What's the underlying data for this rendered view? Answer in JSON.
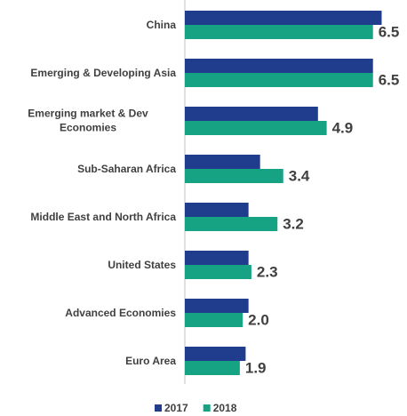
{
  "chart_data": {
    "type": "barh",
    "categories": [
      "China",
      "Emerging & Developing Asia",
      "Emerging market & Dev Economies",
      "Sub-Saharan Africa",
      "Middle East and North Africa",
      "United States",
      "Advanced Economies",
      "Euro Area"
    ],
    "series": [
      {
        "name": "2017",
        "color": "#203c8c",
        "values": [
          6.8,
          6.5,
          4.6,
          2.6,
          2.2,
          2.2,
          2.2,
          2.1
        ]
      },
      {
        "name": "2018",
        "color": "#16a384",
        "values": [
          6.5,
          6.5,
          4.9,
          3.4,
          3.2,
          2.3,
          2.0,
          1.9
        ],
        "value_labels": [
          "6.5",
          "6.5",
          "4.9",
          "3.4",
          "3.2",
          "2.3",
          "2.0",
          "1.9"
        ]
      }
    ],
    "xlim": [
      0,
      7
    ],
    "legend": "bottom"
  }
}
